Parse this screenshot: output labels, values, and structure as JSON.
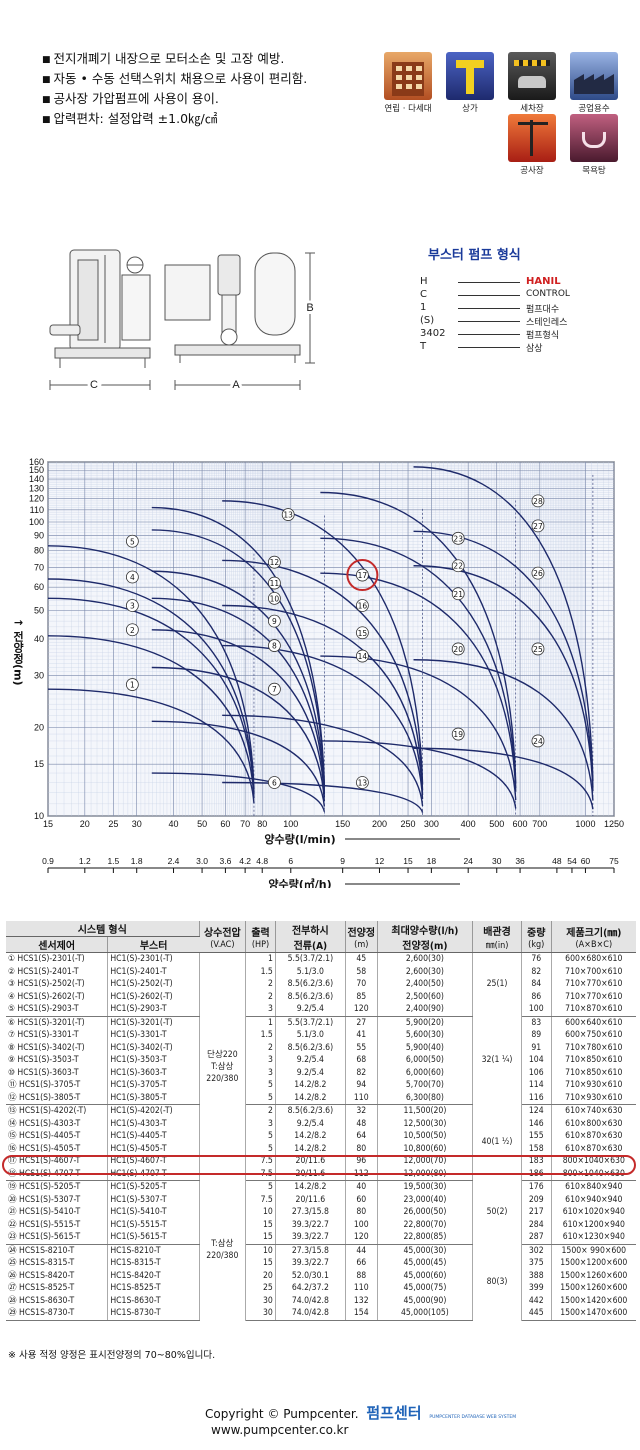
{
  "features": [
    "전지개폐기 내장으로 모터소손 및 고장 예방.",
    "자동 • 수동 선택스위치 채용으로 사용이 편리함.",
    "공사장 가압펌프에 사용이 용이.",
    "압력편차: 설정압력 ±1.0㎏/㎠"
  ],
  "uses": [
    {
      "label": "연립 · 다세대",
      "icon": "apartment-icon",
      "color": "#c8642e"
    },
    {
      "label": "상가",
      "icon": "shopping-icon",
      "color": "#2e3f8e"
    },
    {
      "label": "세차장",
      "icon": "car-wash-icon",
      "color": "#3b3b3b"
    },
    {
      "label": "공업용수",
      "icon": "factory-icon",
      "color": "#31508e"
    },
    {
      "label": "공사장",
      "icon": "construction-icon",
      "color": "#d43a24"
    },
    {
      "label": "목욕탕",
      "icon": "bathhouse-icon",
      "color": "#7a2a44"
    }
  ],
  "diagram": {
    "label_c": "C",
    "label_a": "A",
    "label_b": "B"
  },
  "legend": {
    "title": "부스터 펌프 형식",
    "rows": [
      {
        "code": "H",
        "desc": "HANIL"
      },
      {
        "code": "C",
        "desc": "CONTROL"
      },
      {
        "code": "1",
        "desc": "펌프대수"
      },
      {
        "code": "(S)",
        "desc": "스테인레스"
      },
      {
        "code": "3402",
        "desc": "펌프형식"
      },
      {
        "code": "T",
        "desc": "삼상"
      }
    ]
  },
  "chart_data": {
    "type": "line",
    "title": "",
    "ylabel": "전양정(m)",
    "xlabel": "양수량(l/min)",
    "xlabel2": "양수량(㎥/h)",
    "x_scale": "log",
    "y_scale": "log",
    "ylim": [
      10,
      160
    ],
    "xlim": [
      15,
      1250
    ],
    "y_ticks": [
      10,
      15,
      20,
      30,
      40,
      50,
      60,
      70,
      80,
      90,
      100,
      110,
      120,
      130,
      140,
      150,
      160
    ],
    "x_ticks": [
      15,
      20,
      25,
      30,
      40,
      50,
      60,
      70,
      80,
      100,
      150,
      200,
      250,
      300,
      400,
      500,
      600,
      700,
      1000,
      1250
    ],
    "x2_ticks": [
      "0.9",
      "1.2",
      "1.5",
      "1.8",
      "2.4",
      "3.0",
      "3.6",
      "4.2",
      "4.8",
      "6",
      "9",
      "12",
      "15",
      "18",
      "24",
      "30",
      "36",
      "48",
      "54",
      "60",
      "75"
    ],
    "x2_values": [
      0.9,
      1.2,
      1.5,
      1.8,
      2.4,
      3.0,
      3.6,
      4.2,
      4.8,
      6,
      9,
      12,
      15,
      18,
      24,
      30,
      36,
      48,
      54,
      60,
      75
    ],
    "zones": [
      {
        "labels": [
          1,
          2,
          3,
          4,
          5
        ],
        "x_max": 75,
        "heads": [
          27,
          41,
          55,
          64,
          83
        ]
      },
      {
        "labels": [
          6,
          7,
          8,
          9,
          10,
          11,
          12,
          13
        ],
        "x_max": 130,
        "heads": [
          14,
          21,
          32,
          43,
          55,
          68,
          94,
          112
        ]
      },
      {
        "labels": [
          13,
          14,
          15,
          16,
          17,
          18
        ],
        "x_max": 280,
        "heads": [
          13,
          22,
          38,
          52,
          74,
          118
        ]
      },
      {
        "labels": [
          19,
          20,
          21,
          22,
          23
        ],
        "x_max": 580,
        "heads": [
          18,
          35,
          67,
          88,
          126
        ]
      },
      {
        "labels": [
          24,
          25,
          26,
          27,
          28
        ],
        "x_max": 1060,
        "heads": [
          17,
          34,
          71,
          93,
          154
        ]
      }
    ],
    "label_positions": [
      {
        "n": 1,
        "x": 29,
        "y": 28
      },
      {
        "n": 2,
        "x": 29,
        "y": 43
      },
      {
        "n": 3,
        "x": 29,
        "y": 52
      },
      {
        "n": 4,
        "x": 29,
        "y": 65
      },
      {
        "n": 5,
        "x": 29,
        "y": 86
      },
      {
        "n": 6,
        "x": 88,
        "y": 13
      },
      {
        "n": 7,
        "x": 88,
        "y": 27
      },
      {
        "n": 8,
        "x": 88,
        "y": 38
      },
      {
        "n": 9,
        "x": 88,
        "y": 46
      },
      {
        "n": 10,
        "x": 88,
        "y": 55
      },
      {
        "n": 11,
        "x": 88,
        "y": 62
      },
      {
        "n": 12,
        "x": 88,
        "y": 73
      },
      {
        "n": 13,
        "x": 98,
        "y": 106
      },
      {
        "n": 13,
        "x": 175,
        "y": 13
      },
      {
        "n": 14,
        "x": 175,
        "y": 35
      },
      {
        "n": 15,
        "x": 175,
        "y": 42
      },
      {
        "n": 16,
        "x": 175,
        "y": 52
      },
      {
        "n": 17,
        "x": 175,
        "y": 66
      },
      {
        "n": 19,
        "x": 370,
        "y": 19
      },
      {
        "n": 20,
        "x": 370,
        "y": 37
      },
      {
        "n": 21,
        "x": 370,
        "y": 57
      },
      {
        "n": 22,
        "x": 370,
        "y": 71
      },
      {
        "n": 23,
        "x": 370,
        "y": 88
      },
      {
        "n": 24,
        "x": 690,
        "y": 18
      },
      {
        "n": 25,
        "x": 690,
        "y": 37
      },
      {
        "n": 26,
        "x": 690,
        "y": 67
      },
      {
        "n": 27,
        "x": 690,
        "y": 97
      },
      {
        "n": 28,
        "x": 690,
        "y": 118
      }
    ],
    "highlight": 17
  },
  "table": {
    "header1": [
      "시스템 형식",
      "상수전압",
      "출력",
      "전부하시",
      "전양정",
      "최대양수량(l/h)",
      "배관경",
      "중량",
      "제품크기(㎜)"
    ],
    "header2": [
      "센서제어",
      "부스터",
      "(V.AC)",
      "(HP)",
      "전류(A)",
      "(m)",
      "전양정(m)",
      "㎜(in)",
      "(kg)",
      "(A×B×C)"
    ],
    "rows": [
      [
        "① HCS1(S)-2301(-T)",
        "HC1(S)-2301(-T)",
        "1",
        "5.5(3.7/2.1)",
        "45",
        "2,600(30)",
        "76",
        "600×680×610"
      ],
      [
        "② HCS1(S)-2401-T",
        "HC1(S)-2401-T",
        "1.5",
        "5.1/3.0",
        "58",
        "2,600(30)",
        "82",
        "710×700×610"
      ],
      [
        "③ HCS1(S)-2502(-T)",
        "HC1(S)-2502(-T)",
        "2",
        "8.5(6.2/3.6)",
        "70",
        "2,400(50)",
        "84",
        "710×770×610"
      ],
      [
        "④ HCS1(S)-2602(-T)",
        "HC1(S)-2602(-T)",
        "2",
        "8.5(6.2/3.6)",
        "85",
        "2,500(60)",
        "86",
        "710×770×610"
      ],
      [
        "⑤ HCS1(S)-2903-T",
        "HC1(S)-2903-T",
        "3",
        "9.2/5.4",
        "120",
        "2,400(90)",
        "100",
        "710×870×610"
      ],
      [
        "⑥ HCS1(S)-3201(-T)",
        "HC1(S)-3201(-T)",
        "1",
        "5.5(3.7/2.1)",
        "27",
        "5,900(20)",
        "83",
        "600×640×610"
      ],
      [
        "⑦ HCS1(S)-3301-T",
        "HC1(S)-3301-T",
        "1.5",
        "5.1/3.0",
        "41",
        "5,600(30)",
        "89",
        "600×750×610"
      ],
      [
        "⑧ HCS1(S)-3402(-T)",
        "HC1(S)-3402(-T)",
        "2",
        "8.5(6.2/3.6)",
        "55",
        "5,900(40)",
        "91",
        "710×780×610"
      ],
      [
        "⑨ HCS1(S)-3503-T",
        "HC1(S)-3503-T",
        "3",
        "9.2/5.4",
        "68",
        "6,000(50)",
        "104",
        "710×850×610"
      ],
      [
        "⑩ HCS1(S)-3603-T",
        "HC1(S)-3603-T",
        "3",
        "9.2/5.4",
        "82",
        "6,000(60)",
        "106",
        "710×850×610"
      ],
      [
        "⑪ HCS1(S)-3705-T",
        "HC1(S)-3705-T",
        "5",
        "14.2/8.2",
        "94",
        "5,700(70)",
        "114",
        "710×930×610"
      ],
      [
        "⑫ HCS1(S)-3805-T",
        "HC1(S)-3805-T",
        "5",
        "14.2/8.2",
        "110",
        "6,300(80)",
        "116",
        "710×930×610"
      ],
      [
        "⑬ HCS1(S)-4202(-T)",
        "HC1(S)-4202(-T)",
        "2",
        "8.5(6.2/3.6)",
        "32",
        "11,500(20)",
        "124",
        "610×740×630"
      ],
      [
        "⑭ HCS1(S)-4303-T",
        "HC1(S)-4303-T",
        "3",
        "9.2/5.4",
        "48",
        "12,500(30)",
        "146",
        "610×800×630"
      ],
      [
        "⑮ HCS1(S)-4405-T",
        "HC1(S)-4405-T",
        "5",
        "14.2/8.2",
        "64",
        "10,500(50)",
        "155",
        "610×870×630"
      ],
      [
        "⑯ HCS1(S)-4505-T",
        "HC1(S)-4505-T",
        "5",
        "14.2/8.2",
        "80",
        "10,800(60)",
        "158",
        "610×870×630"
      ],
      [
        "⑰ HCS1(S)-4607-T",
        "HC1(S)-4607-T",
        "7.5",
        "20/11.6",
        "96",
        "12,000(70)",
        "183",
        "800×1040×630"
      ],
      [
        "⑱ HCS1(S)-4707-T",
        "HC1(S)-4707-T",
        "7.5",
        "20/11.6",
        "112",
        "12,000(80)",
        "186",
        "800×1040×630"
      ],
      [
        "⑲ HCS1(S)-5205-T",
        "HC1(S)-5205-T",
        "5",
        "14.2/8.2",
        "40",
        "19,500(30)",
        "176",
        "610×840×940"
      ],
      [
        "⑳ HCS1(S)-5307-T",
        "HC1(S)-5307-T",
        "7.5",
        "20/11.6",
        "60",
        "23,000(40)",
        "209",
        "610×940×940"
      ],
      [
        "㉑ HCS1(S)-5410-T",
        "HC1(S)-5410-T",
        "10",
        "27.3/15.8",
        "80",
        "26,000(50)",
        "217",
        "610×1020×940"
      ],
      [
        "㉒ HCS1(S)-5515-T",
        "HC1(S)-5515-T",
        "15",
        "39.3/22.7",
        "100",
        "22,800(70)",
        "284",
        "610×1200×940"
      ],
      [
        "㉓ HCS1(S)-5615-T",
        "HC1(S)-5615-T",
        "15",
        "39.3/22.7",
        "120",
        "22,800(85)",
        "287",
        "610×1230×940"
      ],
      [
        "㉔ HCS1S-8210-T",
        "HC1S-8210-T",
        "10",
        "27.3/15.8",
        "44",
        "45,000(30)",
        "302",
        "1500× 990×600"
      ],
      [
        "㉕ HCS1S-8315-T",
        "HC1S-8315-T",
        "15",
        "39.3/22.7",
        "66",
        "45,000(45)",
        "375",
        "1500×1200×600"
      ],
      [
        "㉖ HCS1S-8420-T",
        "HC1S-8420-T",
        "20",
        "52.0/30.1",
        "88",
        "45,000(60)",
        "388",
        "1500×1260×600"
      ],
      [
        "㉗ HCS1S-8525-T",
        "HC1S-8525-T",
        "25",
        "64.2/37.2",
        "110",
        "45,000(75)",
        "399",
        "1500×1260×600"
      ],
      [
        "㉘ HCS1S-8630-T",
        "HC1S-8630-T",
        "30",
        "74.0/42.8",
        "132",
        "45,000(90)",
        "442",
        "1500×1420×600"
      ],
      [
        "㉙ HCS1S-8730-T",
        "HC1S-8730-T",
        "30",
        "74.0/42.8",
        "154",
        "45,000(105)",
        "445",
        "1500×1470×600"
      ]
    ],
    "voltage_single": "단상220\nT:삼상\n220/380",
    "voltage_three": "T:삼상\n220/380",
    "pipes": [
      "25(1)",
      "32(1 ¼)",
      "40(1 ½)",
      "50(2)",
      "80(3)"
    ]
  },
  "note": "※ 사용 적정 양정은 표시전양정의 70~80%입니다.",
  "footer": {
    "copyright": "Copyright © Pumpcenter.",
    "brand": "펌프센터",
    "tag": "PUMPCENTER DATABASE WEB SYSTEM",
    "url": "www.pumpcenter.co.kr"
  }
}
